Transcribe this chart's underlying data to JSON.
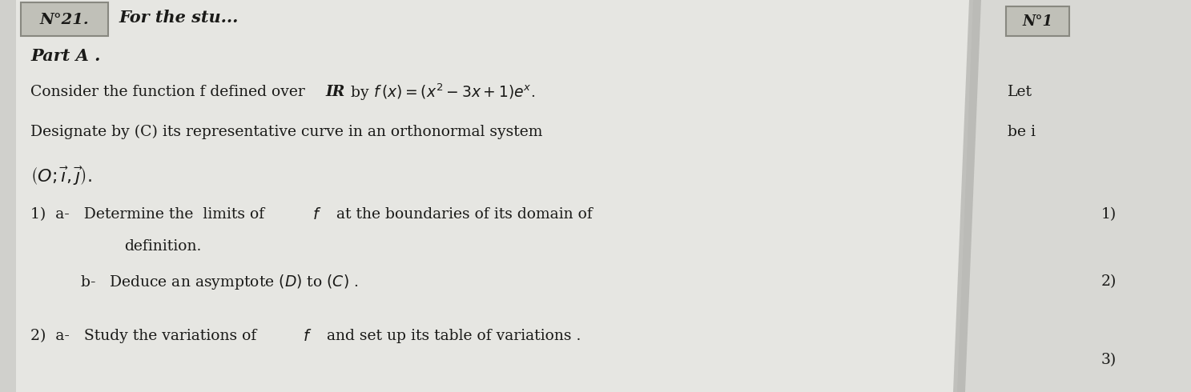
{
  "bg_color": "#d0d0cc",
  "left_page_color": "#e6e6e2",
  "right_page_color": "#d8d8d4",
  "shadow_color": "#a8a8a4",
  "text_color": "#1a1a18",
  "box_face_color": "#c0c0b8",
  "box_edge_color": "#888880",
  "title_text": "N°21.",
  "header_text": "For the stu...",
  "part_text": "Part A .",
  "title_text_right": "N°1",
  "right_let": "Let",
  "right_be": "be i",
  "right_1": "1)",
  "right_2": "2)",
  "right_3": "3)"
}
